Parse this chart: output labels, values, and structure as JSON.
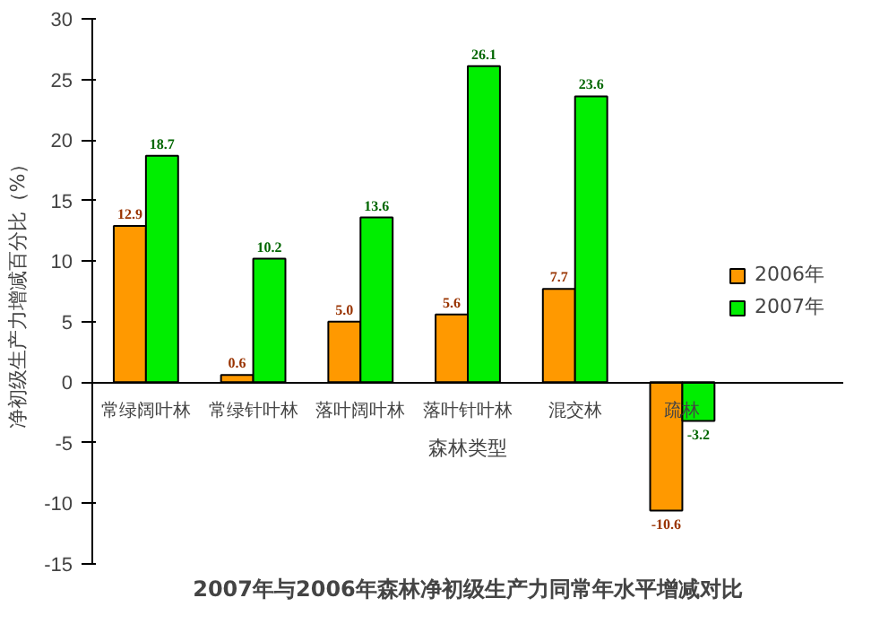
{
  "chart_data": {
    "type": "bar",
    "title": "2007年与2006年森林净初级生产力同常年水平增减对比",
    "xlabel": "森林类型",
    "ylabel": "净初级生产力增减百分比（%）",
    "categories": [
      "常绿阔叶林",
      "常绿针叶林",
      "落叶阔叶林",
      "落叶针叶林",
      "混交林",
      "疏林"
    ],
    "series": [
      {
        "name": "2006年",
        "color": "#ff9900",
        "values": [
          12.9,
          0.6,
          5.0,
          5.6,
          7.7,
          -10.6
        ],
        "value_labels": [
          "12.9",
          "0.6",
          "5.0",
          "5.6",
          "7.7",
          "-10.6"
        ]
      },
      {
        "name": "2007年",
        "color": "#00ee00",
        "values": [
          18.7,
          10.2,
          13.6,
          26.1,
          23.6,
          -3.2
        ],
        "value_labels": [
          "18.7",
          "10.2",
          "13.6",
          "26.1",
          "23.6",
          "-3.2"
        ]
      }
    ],
    "ylim": [
      -15,
      30
    ],
    "yticks": [
      -15,
      -10,
      -5,
      0,
      5,
      10,
      15,
      20,
      25,
      30
    ],
    "grid": false,
    "legend": "right"
  }
}
